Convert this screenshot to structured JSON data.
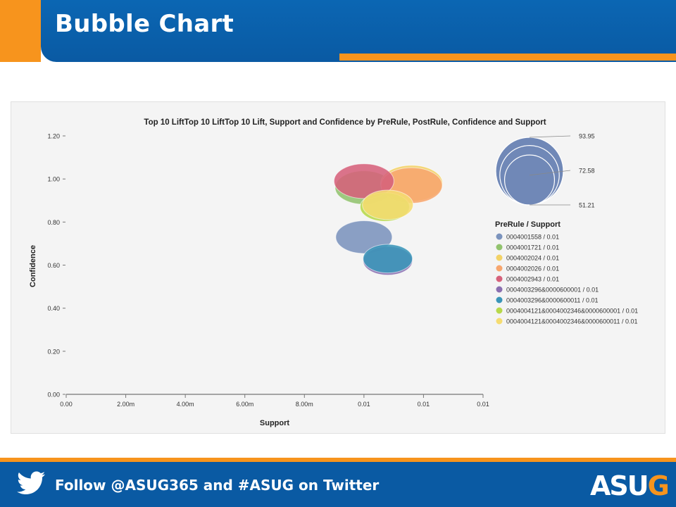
{
  "slide": {
    "title": "Bubble Chart",
    "footer_text": "Follow @ASUG365 and #ASUG on Twitter",
    "logo_main": "ASU",
    "logo_accent": "G",
    "colors": {
      "header_blue": "#0a5aa3",
      "accent_orange": "#f7941d"
    },
    "icons": [
      "twitter-bird-icon"
    ]
  },
  "chart_data": {
    "type": "scatter",
    "title": "Top 10 LiftTop 10 LiftTop 10 Lift, Support and Confidence by PreRule, PostRule, Confidence and Support",
    "xlabel": "Support",
    "ylabel": "Confidence",
    "x_tick_labels": [
      "0.00",
      "2.00m",
      "4.00m",
      "6.00m",
      "8.00m",
      "0.01",
      "0.01",
      "0.01"
    ],
    "y_tick_labels": [
      "0.00",
      "0.20",
      "0.40",
      "0.60",
      "0.80",
      "1.00",
      "1.20"
    ],
    "xlim": [
      0,
      0.014
    ],
    "ylim": [
      0,
      1.2
    ],
    "grid": false,
    "legend_title": "PreRule / Support",
    "legend_position": "right",
    "size_legend": {
      "values": [
        93.95,
        72.58,
        51.21
      ]
    },
    "series": [
      {
        "name": "0004001558 / 0.01",
        "color": "#7b93bd",
        "x": 0.01,
        "y": 0.73,
        "size": 80
      },
      {
        "name": "0004001721 / 0.01",
        "color": "#92c36e",
        "x": 0.01,
        "y": 0.96,
        "size": 82
      },
      {
        "name": "0004002024 / 0.01",
        "color": "#f2d266",
        "x": 0.0116,
        "y": 0.98,
        "size": 88
      },
      {
        "name": "0004002026 / 0.01",
        "color": "#f7a66e",
        "x": 0.0116,
        "y": 0.97,
        "size": 87
      },
      {
        "name": "0004002943 / 0.01",
        "color": "#d6617b",
        "x": 0.01,
        "y": 0.99,
        "size": 85
      },
      {
        "name": "0004003296&0000600001 / 0.01",
        "color": "#8a6fb0",
        "x": 0.0108,
        "y": 0.62,
        "size": 70
      },
      {
        "name": "0004003296&0000600011 / 0.01",
        "color": "#3a95b8",
        "x": 0.0108,
        "y": 0.63,
        "size": 70
      },
      {
        "name": "0004004121&0004002346&0000600001 / 0.01",
        "color": "#b7d84a",
        "x": 0.0107,
        "y": 0.87,
        "size": 70
      },
      {
        "name": "0004004121&0004002346&0000600011 / 0.01",
        "color": "#f5dc71",
        "x": 0.0108,
        "y": 0.88,
        "size": 72
      }
    ]
  }
}
